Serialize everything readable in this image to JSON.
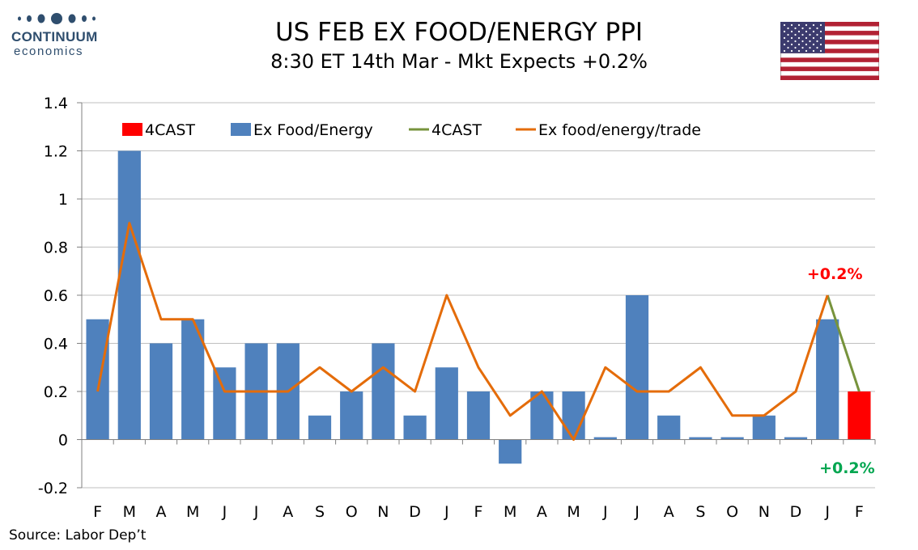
{
  "logo": {
    "name": "CONTINUUM",
    "sub": "economics",
    "color": "#2f4e6e"
  },
  "title": "US FEB EX FOOD/ENERGY PPI",
  "subtitle": "8:30 ET 14th Mar - Mkt Expects +0.2%",
  "source": "Source: Labor Dep’t",
  "chart_data": {
    "type": "bar",
    "categories": [
      "F",
      "M",
      "A",
      "M",
      "J",
      "J",
      "A",
      "S",
      "O",
      "N",
      "D",
      "J",
      "F",
      "M",
      "A",
      "M",
      "J",
      "J",
      "A",
      "S",
      "O",
      "N",
      "D",
      "J",
      "F"
    ],
    "ylim": [
      -0.2,
      1.4
    ],
    "yticks": [
      -0.2,
      0,
      0.2,
      0.4,
      0.6,
      0.8,
      1,
      1.2,
      1.4
    ],
    "ytick_labels": [
      "-0.2",
      "0",
      "0.2",
      "0.4",
      "0.6",
      "0.8",
      "1",
      "1.2",
      "1.4"
    ],
    "grid": true,
    "legend_position": "top",
    "series": [
      {
        "name": "4CAST",
        "kind": "bar",
        "color": "#ff0000",
        "values": [
          null,
          null,
          null,
          null,
          null,
          null,
          null,
          null,
          null,
          null,
          null,
          null,
          null,
          null,
          null,
          null,
          null,
          null,
          null,
          null,
          null,
          null,
          null,
          null,
          0.2
        ]
      },
      {
        "name": "Ex Food/Energy",
        "kind": "bar",
        "color": "#4f81bd",
        "values": [
          0.5,
          1.2,
          0.4,
          0.5,
          0.3,
          0.4,
          0.4,
          0.1,
          0.2,
          0.4,
          0.1,
          0.3,
          0.2,
          -0.1,
          0.2,
          0.2,
          0.01,
          0.6,
          0.1,
          0.01,
          0.01,
          0.1,
          0.01,
          0.5,
          null
        ]
      },
      {
        "name": "4CAST",
        "kind": "line",
        "color": "#77933c",
        "values": [
          null,
          null,
          null,
          null,
          null,
          null,
          null,
          null,
          null,
          null,
          null,
          null,
          null,
          null,
          null,
          null,
          null,
          null,
          null,
          null,
          null,
          null,
          null,
          0.6,
          0.2
        ]
      },
      {
        "name": "Ex food/energy/trade",
        "kind": "line",
        "color": "#e46c0a",
        "values": [
          0.2,
          0.9,
          0.5,
          0.5,
          0.2,
          0.2,
          0.2,
          0.3,
          0.2,
          0.3,
          0.2,
          0.6,
          0.3,
          0.1,
          0.2,
          0.0,
          0.3,
          0.2,
          0.2,
          0.3,
          0.1,
          0.1,
          0.2,
          0.6,
          null
        ]
      }
    ],
    "annotations": [
      {
        "text": "+0.2%",
        "color": "#ff0000",
        "anchor": "above-series-line"
      },
      {
        "text": "+0.2%",
        "color": "#00a650",
        "anchor": "below-axis"
      }
    ]
  }
}
